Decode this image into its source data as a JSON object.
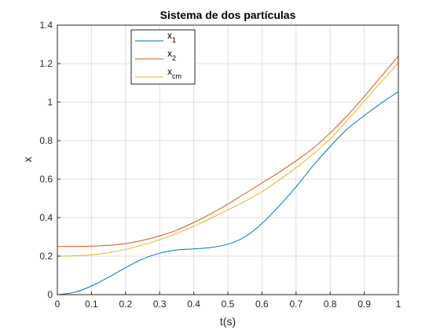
{
  "chart_data": {
    "type": "line",
    "title": "Sistema de dos partículas",
    "xlabel": "t(s)",
    "ylabel": "x",
    "xlim": [
      0,
      1
    ],
    "ylim": [
      0,
      1.4
    ],
    "xticks": [
      "0",
      "0.1",
      "0.2",
      "0.3",
      "0.4",
      "0.5",
      "0.6",
      "0.7",
      "0.8",
      "0.9",
      "1"
    ],
    "yticks": [
      "0",
      "0.2",
      "0.4",
      "0.6",
      "0.8",
      "1",
      "1.2",
      "1.4"
    ],
    "grid": true,
    "legend_placement": "top-left",
    "x": [
      0,
      0.05,
      0.1,
      0.15,
      0.2,
      0.25,
      0.3,
      0.35,
      0.4,
      0.45,
      0.5,
      0.55,
      0.6,
      0.65,
      0.7,
      0.75,
      0.8,
      0.85,
      0.9,
      0.95,
      1.0
    ],
    "series": [
      {
        "name_base": "x",
        "name_sub": "1",
        "color": "#0072BD",
        "values": [
          0.0,
          0.012,
          0.045,
          0.09,
          0.14,
          0.185,
          0.215,
          0.232,
          0.238,
          0.245,
          0.262,
          0.3,
          0.37,
          0.46,
          0.56,
          0.67,
          0.77,
          0.86,
          0.93,
          0.995,
          1.055
        ]
      },
      {
        "name_base": "x",
        "name_sub": "2",
        "color": "#D95319",
        "values": [
          0.25,
          0.25,
          0.252,
          0.256,
          0.265,
          0.282,
          0.305,
          0.335,
          0.375,
          0.42,
          0.47,
          0.525,
          0.58,
          0.635,
          0.695,
          0.76,
          0.84,
          0.93,
          1.03,
          1.135,
          1.24
        ]
      },
      {
        "name_base": "x",
        "name_sub": "cm",
        "color": "#EDB120",
        "values": [
          0.2,
          0.202,
          0.207,
          0.218,
          0.235,
          0.258,
          0.285,
          0.318,
          0.355,
          0.397,
          0.44,
          0.485,
          0.535,
          0.595,
          0.66,
          0.73,
          0.81,
          0.905,
          1.005,
          1.105,
          1.205
        ]
      }
    ]
  },
  "colors": {
    "axes_text": "#262626",
    "grid": "#dfdfdf",
    "axes_line": "#262626"
  }
}
